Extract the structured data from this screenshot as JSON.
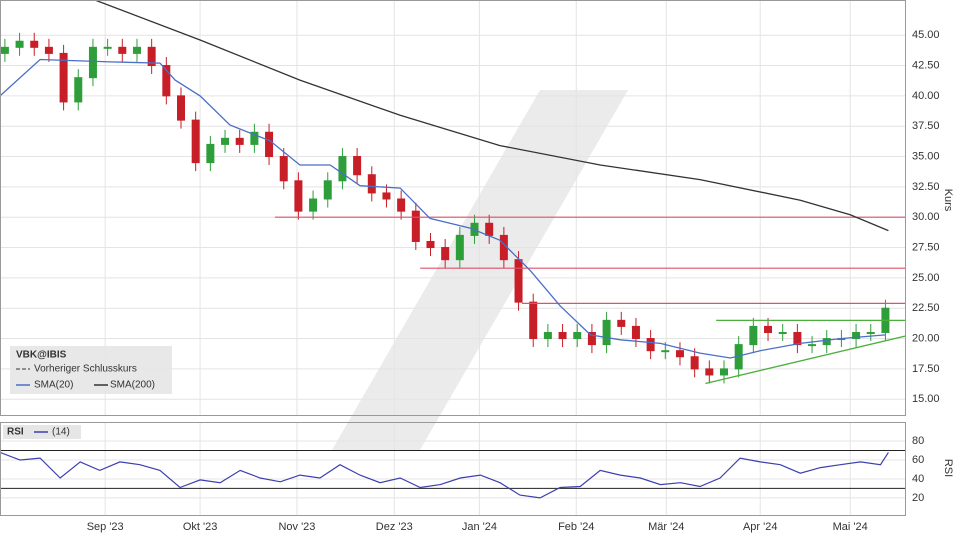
{
  "chart_data": [
    {
      "type": "candlestick",
      "title": "VBK@IBIS",
      "legend_note": "Vorheriger Schlusskurs",
      "y_label": "Kurs",
      "xlim": [
        0,
        185
      ],
      "ylim": [
        13.7,
        47.9
      ],
      "yticks": [
        {
          "value": 15,
          "label": "15.00"
        },
        {
          "value": 17.5,
          "label": "17.50"
        },
        {
          "value": 20,
          "label": "20.00"
        },
        {
          "value": 22.5,
          "label": "22.50"
        },
        {
          "value": 25,
          "label": "25.00"
        },
        {
          "value": 27.5,
          "label": "27.50"
        },
        {
          "value": 30,
          "label": "30.00"
        },
        {
          "value": 32.5,
          "label": "32.50"
        },
        {
          "value": 35,
          "label": "35.00"
        },
        {
          "value": 37.5,
          "label": "37.50"
        },
        {
          "value": 40,
          "label": "40.00"
        },
        {
          "value": 42.5,
          "label": "42.50"
        },
        {
          "value": 45,
          "label": "45.00"
        }
      ],
      "grid": true,
      "up_color": "#2e9e3a",
      "down_color": "#c81e28",
      "x": [
        1,
        4,
        7,
        10,
        13,
        16,
        19,
        22,
        25,
        28,
        31,
        34,
        37,
        40,
        43,
        46,
        49,
        52,
        55,
        58,
        61,
        64,
        67,
        70,
        73,
        76,
        79,
        82,
        85,
        88,
        91,
        94,
        97,
        100,
        103,
        106,
        109,
        112,
        115,
        118,
        121,
        124,
        127,
        130,
        133,
        136,
        139,
        142,
        145,
        148,
        151,
        154,
        157,
        160,
        163,
        166,
        169,
        172,
        175,
        178,
        181
      ],
      "open": [
        43.5,
        44,
        44.5,
        44,
        43.5,
        39.5,
        41.5,
        44,
        44,
        43.5,
        44,
        42.5,
        40,
        38,
        34.5,
        36,
        36.5,
        36,
        37,
        35,
        33,
        30.5,
        31.5,
        33,
        35,
        33.5,
        32,
        31.5,
        30.5,
        28,
        27.5,
        26.5,
        28.5,
        29.5,
        28.5,
        26.5,
        23,
        20,
        20.5,
        20,
        20.5,
        19.5,
        21.5,
        21,
        20,
        19,
        19,
        18.5,
        17.5,
        17,
        17.5,
        19.5,
        21,
        20.5,
        20.5,
        19.5,
        19.5,
        20,
        20,
        20.5,
        20.5
      ],
      "high": [
        44.7,
        45.2,
        45.2,
        44.7,
        44.2,
        42.2,
        44.7,
        44.7,
        44.7,
        44.7,
        44.7,
        43.2,
        40.7,
        38.7,
        36.7,
        37.2,
        37.2,
        37.7,
        37.7,
        35.7,
        33.7,
        32.2,
        33.7,
        35.7,
        35.7,
        34.2,
        32.7,
        32.2,
        31.2,
        28.7,
        28.2,
        29.2,
        30.2,
        30.2,
        29.2,
        27.2,
        23.7,
        21.2,
        21.2,
        21.2,
        21.2,
        22.2,
        22.2,
        21.7,
        20.7,
        19.7,
        19.7,
        19.2,
        18.2,
        18.2,
        20.2,
        21.7,
        21.7,
        21.2,
        21.2,
        20.2,
        20.7,
        20.7,
        21.2,
        21.2,
        23.2
      ],
      "low": [
        42.8,
        43.3,
        43.3,
        42.8,
        38.8,
        38.8,
        40.8,
        43.3,
        42.8,
        42.8,
        41.8,
        39.3,
        37.3,
        33.8,
        33.8,
        35.3,
        35.3,
        35.3,
        34.3,
        32.3,
        29.8,
        29.8,
        30.8,
        32.3,
        32.8,
        31.3,
        30.8,
        29.8,
        27.3,
        26.8,
        25.8,
        25.8,
        27.8,
        27.8,
        25.8,
        22.3,
        19.3,
        19.3,
        19.3,
        19.3,
        18.8,
        18.8,
        20.3,
        19.3,
        18.3,
        18.3,
        17.8,
        16.8,
        16.3,
        16.3,
        16.8,
        18.8,
        19.8,
        19.8,
        18.8,
        18.8,
        18.8,
        19.3,
        19.3,
        19.8,
        19.8
      ],
      "close": [
        44,
        44.5,
        44,
        43.5,
        39.5,
        41.5,
        44,
        44,
        43.5,
        44,
        42.5,
        40,
        38,
        34.5,
        36,
        36.5,
        36,
        37,
        35,
        33,
        30.5,
        31.5,
        33,
        35,
        33.5,
        32,
        31.5,
        30.5,
        28,
        27.5,
        26.5,
        28.5,
        29.5,
        28.5,
        26.5,
        23,
        20,
        20.5,
        20,
        20.5,
        19.5,
        21.5,
        21,
        20,
        19,
        19,
        18.5,
        17.5,
        17,
        17.5,
        19.5,
        21,
        20.5,
        20.5,
        19.5,
        19.5,
        20,
        20,
        20.5,
        20.5,
        22.5
      ],
      "series": [
        {
          "name": "SMA(20)",
          "color": "#4a6fc7",
          "x": [
            0,
            8.2,
            22.5,
            32.7,
            35.8,
            40.9,
            47,
            55.2,
            61.3,
            67.5,
            73.6,
            81.8,
            87.9,
            96.1,
            102.2,
            108.4,
            114.5,
            120.7,
            126.8,
            135,
            143.1,
            149.3,
            155.4,
            163.6,
            171.8,
            181
          ],
          "values": [
            40,
            43,
            42.8,
            42.7,
            41.3,
            40,
            37.6,
            36.3,
            34.3,
            34.3,
            32.6,
            32.4,
            29.9,
            29.1,
            28.1,
            25.6,
            22.7,
            20.3,
            19.9,
            19.6,
            18.8,
            18.4,
            19,
            19.6,
            20,
            20.3
          ]
        },
        {
          "name": "SMA(200)",
          "color": "#333333",
          "x": [
            19.4,
            40.9,
            61.3,
            81.8,
            102.2,
            122.7,
            143.1,
            163.6,
            173.8,
            181.6
          ],
          "values": [
            47.9,
            44.6,
            41.3,
            38.4,
            35.9,
            34.3,
            33.1,
            31.4,
            30.2,
            28.9
          ]
        }
      ],
      "levels": [
        {
          "value": 30,
          "from": 56.2,
          "color": "#e0506a"
        },
        {
          "value": 25.8,
          "from": 85.9,
          "color": "#e0506a"
        },
        {
          "value": 22.9,
          "from": 106.7,
          "color": "#e0506a"
        },
        {
          "value": 21.5,
          "from": 146.4,
          "color": "#4caf3c"
        }
      ],
      "trendline": {
        "color": "#4caf3c",
        "x": [
          144.2,
          185
        ],
        "values": [
          16.3,
          20.2
        ]
      }
    },
    {
      "type": "line",
      "title": "RSI",
      "period": "(14)",
      "y_label": "RSI",
      "xlim": [
        0,
        185
      ],
      "ylim": [
        2,
        100
      ],
      "yticks": [
        20,
        40,
        60,
        80
      ],
      "grid": true,
      "bands": [
        70,
        30
      ],
      "xticks": [
        {
          "value": 21.5,
          "label": "Sep '23"
        },
        {
          "value": 40.9,
          "label": "Okt '23"
        },
        {
          "value": 60.7,
          "label": "Nov '23"
        },
        {
          "value": 80.6,
          "label": "Dez '23"
        },
        {
          "value": 98,
          "label": "Jan '24"
        },
        {
          "value": 117.8,
          "label": "Feb '24"
        },
        {
          "value": 136.2,
          "label": "Mär '24"
        },
        {
          "value": 155.4,
          "label": "Apr '24"
        },
        {
          "value": 173.8,
          "label": "Mai '24"
        }
      ],
      "series": [
        {
          "name": "RSI",
          "color": "#3b3fb0",
          "x": [
            0,
            4.1,
            8.2,
            12.3,
            16.4,
            20.4,
            24.5,
            28.6,
            32.7,
            36.8,
            40.9,
            45,
            49.1,
            53.2,
            57.3,
            61.3,
            65.4,
            69.5,
            73.6,
            77.7,
            81.8,
            85.9,
            90,
            94.1,
            98.2,
            102.2,
            106.3,
            110.4,
            114.5,
            118.6,
            122.7,
            126.8,
            130.9,
            135,
            139.1,
            143.1,
            147.2,
            151.3,
            155.4,
            159.5,
            163.6,
            167.7,
            171.8,
            175.9,
            180,
            181.6
          ],
          "values": [
            68,
            60,
            62,
            41,
            58,
            49,
            58,
            55,
            49,
            31,
            39,
            36,
            49,
            41,
            37,
            44,
            41,
            55,
            44,
            36,
            41,
            31,
            34,
            41,
            44,
            36,
            23,
            20,
            31,
            32,
            49,
            44,
            41,
            34,
            36,
            32,
            41,
            62,
            58,
            55,
            46,
            52,
            55,
            58,
            55,
            68
          ]
        }
      ]
    }
  ]
}
